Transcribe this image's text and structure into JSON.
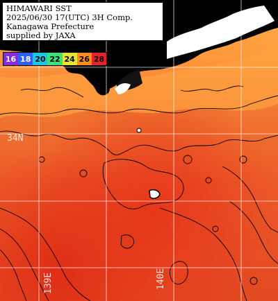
{
  "info": {
    "lines": [
      "HIMAWARI SST",
      "2025/06/30 17(UTC) 3H Comp.",
      "Kanagawa Prefecture",
      "supplied by JAXA"
    ]
  },
  "colorbar": {
    "ticks": [
      {
        "label": "16",
        "color": "#8a2be2"
      },
      {
        "label": "18",
        "color": "#2f5fff"
      },
      {
        "label": "20",
        "color": "#19c8e6"
      },
      {
        "label": "22",
        "color": "#3ee07a"
      },
      {
        "label": "24",
        "color": "#e6e632"
      },
      {
        "label": "26",
        "color": "#ff8c1e"
      },
      {
        "label": "28",
        "color": "#e8222a"
      }
    ]
  },
  "grid_labels": {
    "lat": "34N",
    "lon_left": "139E",
    "lon_right": "140E"
  },
  "colors": {
    "land": "#000000",
    "sea_warm": "#e8552a",
    "sea_hot": "#e63a1c",
    "coast_cool": "#ffb454",
    "grid": "#ffffff"
  }
}
